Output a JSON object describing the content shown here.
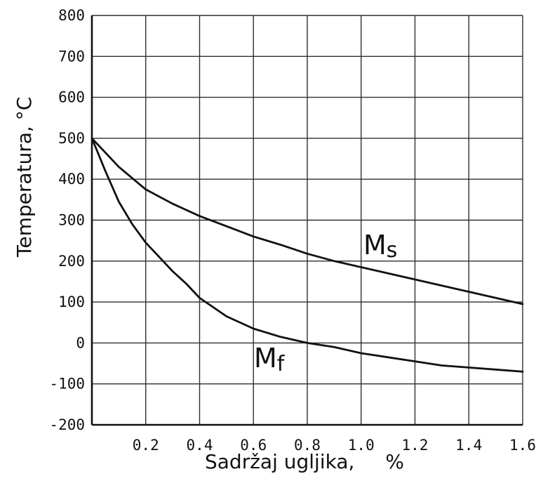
{
  "chart_data": {
    "type": "line",
    "title": "",
    "xlabel": "Sadržaj ugljika,",
    "xunit": "%",
    "ylabel": "Temperatura,",
    "yunit": "°C",
    "xlim": [
      0,
      1.6
    ],
    "ylim": [
      -200,
      800
    ],
    "x_ticks": [
      0.2,
      0.4,
      0.6,
      0.8,
      1.0,
      1.2,
      1.4,
      1.6
    ],
    "x_tick_labels": [
      "0.2",
      "0.4",
      "0.6",
      "0.8",
      "1.0",
      "1.2",
      "1.4",
      "1.6"
    ],
    "y_ticks": [
      -200,
      -100,
      0,
      100,
      200,
      300,
      400,
      500,
      600,
      700,
      800
    ],
    "y_tick_labels": [
      "-200",
      "-100",
      "0",
      "100",
      "200",
      "300",
      "400",
      "500",
      "600",
      "700",
      "800"
    ],
    "grid": true,
    "series": [
      {
        "name": "Ms",
        "label_main": "M",
        "label_sub": "s",
        "x": [
          0.0,
          0.1,
          0.2,
          0.3,
          0.4,
          0.5,
          0.6,
          0.7,
          0.8,
          0.9,
          1.0,
          1.1,
          1.2,
          1.3,
          1.4,
          1.5,
          1.6
        ],
        "y": [
          500,
          430,
          375,
          340,
          310,
          285,
          260,
          240,
          218,
          200,
          185,
          170,
          155,
          140,
          125,
          110,
          95
        ]
      },
      {
        "name": "Mf",
        "label_main": "M",
        "label_sub": "f",
        "x": [
          0.0,
          0.05,
          0.1,
          0.15,
          0.2,
          0.25,
          0.3,
          0.35,
          0.4,
          0.5,
          0.6,
          0.7,
          0.8,
          0.9,
          1.0,
          1.1,
          1.2,
          1.3,
          1.4,
          1.5,
          1.6
        ],
        "y": [
          500,
          420,
          345,
          290,
          245,
          210,
          175,
          145,
          110,
          65,
          35,
          15,
          0,
          -10,
          -25,
          -35,
          -45,
          -55,
          -60,
          -65,
          -70
        ]
      }
    ]
  }
}
